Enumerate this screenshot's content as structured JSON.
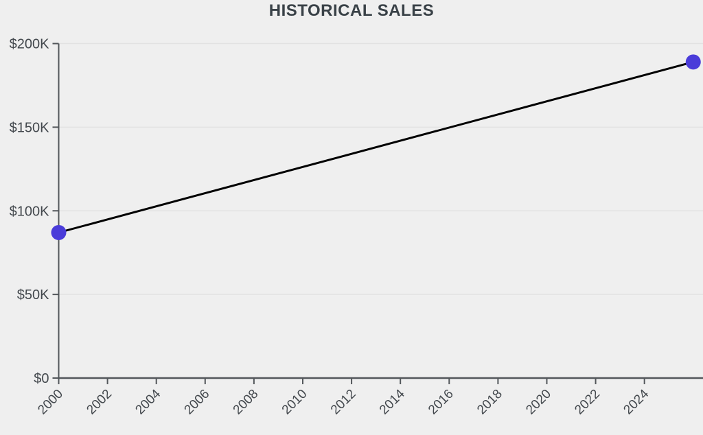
{
  "page": {
    "background_color": "#efefef"
  },
  "chart_data": {
    "type": "line",
    "title": "HISTORICAL SALES",
    "series": [
      {
        "name": "Historical sales",
        "points": [
          {
            "x": 2000,
            "y": 87000
          },
          {
            "x": 2026,
            "y": 189000
          }
        ],
        "line_color": "#000000",
        "line_width": 3,
        "marker_color": "#4a3cd9",
        "marker_radius": 11
      }
    ],
    "x_axis": {
      "min": 2000,
      "max": 2026.4,
      "ticks": [
        2000,
        2002,
        2004,
        2006,
        2008,
        2010,
        2012,
        2014,
        2016,
        2018,
        2020,
        2022,
        2024
      ],
      "tick_labels": [
        "2000",
        "2002",
        "2004",
        "2006",
        "2008",
        "2010",
        "2012",
        "2014",
        "2016",
        "2018",
        "2020",
        "2022",
        "2024"
      ],
      "tick_label_rotation_deg": -45
    },
    "y_axis": {
      "min": 0,
      "max": 200000,
      "ticks": [
        0,
        50000,
        100000,
        150000,
        200000
      ],
      "tick_labels": [
        "$0",
        "$50K",
        "$100K",
        "$150K",
        "$200K"
      ]
    },
    "grid": {
      "show": true,
      "color": "#e2e2e2"
    },
    "colors": {
      "axis": "#53575b",
      "tick_label": "#43484d",
      "title": "#394147",
      "background": "#efefef"
    },
    "legend": {
      "show": false
    }
  }
}
